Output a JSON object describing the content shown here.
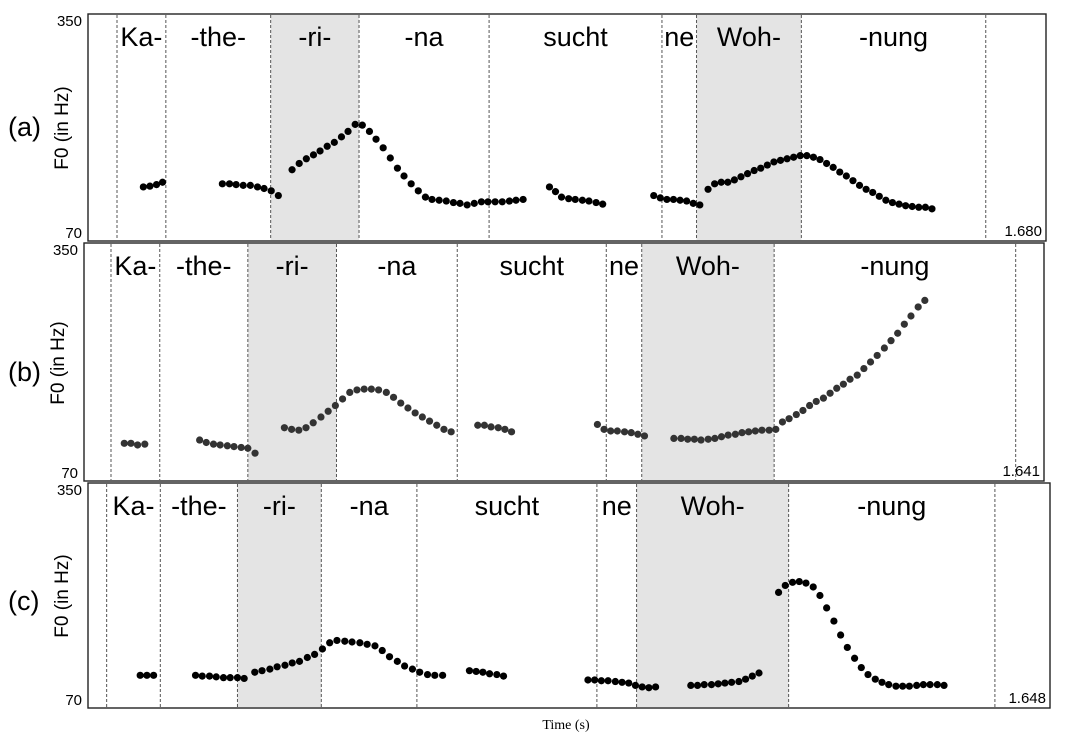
{
  "x_axis_label": "Time (s)",
  "y_axis_label": "F0 (in Hz)",
  "chart_data": [
    {
      "type": "scatter",
      "panel": "(a)",
      "ylim": [
        70,
        350
      ],
      "y_ticks": [
        "350",
        "70"
      ],
      "xlim": [
        0,
        1.68
      ],
      "duration_label": "1.680",
      "syllables": [
        "Ka-",
        "-the-",
        "-ri-",
        "-na",
        "sucht",
        "ne",
        "Woh-",
        "-nung"
      ],
      "highlighted_syllables": [
        "-ri-",
        "Woh-"
      ],
      "boundaries": [
        0.0,
        0.089,
        0.28,
        0.441,
        0.678,
        0.993,
        1.056,
        1.247
      ],
      "end_boundary": 1.583,
      "points": [
        [
          0.048,
          134
        ],
        [
          0.06,
          135
        ],
        [
          0.072,
          137
        ],
        [
          0.083,
          140
        ],
        [
          0.192,
          138
        ],
        [
          0.205,
          138
        ],
        [
          0.217,
          137
        ],
        [
          0.23,
          136
        ],
        [
          0.243,
          136
        ],
        [
          0.256,
          134
        ],
        [
          0.268,
          132
        ],
        [
          0.281,
          129
        ],
        [
          0.294,
          123
        ],
        [
          0.319,
          156
        ],
        [
          0.332,
          164
        ],
        [
          0.345,
          170
        ],
        [
          0.358,
          175
        ],
        [
          0.37,
          180
        ],
        [
          0.383,
          186
        ],
        [
          0.396,
          191
        ],
        [
          0.409,
          198
        ],
        [
          0.421,
          205
        ],
        [
          0.434,
          214
        ],
        [
          0.447,
          213
        ],
        [
          0.46,
          205
        ],
        [
          0.472,
          195
        ],
        [
          0.485,
          184
        ],
        [
          0.498,
          171
        ],
        [
          0.511,
          158
        ],
        [
          0.523,
          148
        ],
        [
          0.536,
          138
        ],
        [
          0.549,
          129
        ],
        [
          0.562,
          121
        ],
        [
          0.574,
          118
        ],
        [
          0.587,
          117
        ],
        [
          0.6,
          116
        ],
        [
          0.613,
          114
        ],
        [
          0.625,
          113
        ],
        [
          0.638,
          111
        ],
        [
          0.651,
          113
        ],
        [
          0.664,
          115
        ],
        [
          0.676,
          115
        ],
        [
          0.689,
          115
        ],
        [
          0.702,
          115
        ],
        [
          0.715,
          116
        ],
        [
          0.727,
          117
        ],
        [
          0.74,
          118
        ],
        [
          0.788,
          134
        ],
        [
          0.799,
          128
        ],
        [
          0.81,
          121
        ],
        [
          0.823,
          119
        ],
        [
          0.835,
          118
        ],
        [
          0.848,
          117
        ],
        [
          0.86,
          116
        ],
        [
          0.873,
          114
        ],
        [
          0.885,
          112
        ],
        [
          0.978,
          123
        ],
        [
          0.99,
          120
        ],
        [
          1.002,
          118
        ],
        [
          1.014,
          118
        ],
        [
          1.026,
          117
        ],
        [
          1.038,
          116
        ],
        [
          1.05,
          113
        ],
        [
          1.062,
          111
        ],
        [
          1.077,
          131
        ],
        [
          1.089,
          138
        ],
        [
          1.101,
          140
        ],
        [
          1.113,
          140
        ],
        [
          1.125,
          143
        ],
        [
          1.137,
          147
        ],
        [
          1.149,
          151
        ],
        [
          1.161,
          155
        ],
        [
          1.173,
          158
        ],
        [
          1.185,
          162
        ],
        [
          1.197,
          166
        ],
        [
          1.209,
          168
        ],
        [
          1.221,
          170
        ],
        [
          1.233,
          172
        ],
        [
          1.245,
          174
        ],
        [
          1.257,
          174
        ],
        [
          1.269,
          172
        ],
        [
          1.281,
          169
        ],
        [
          1.293,
          164
        ],
        [
          1.305,
          159
        ],
        [
          1.317,
          153
        ],
        [
          1.329,
          148
        ],
        [
          1.341,
          142
        ],
        [
          1.353,
          136
        ],
        [
          1.365,
          131
        ],
        [
          1.377,
          127
        ],
        [
          1.389,
          122
        ],
        [
          1.401,
          117
        ],
        [
          1.413,
          114
        ],
        [
          1.425,
          112
        ],
        [
          1.437,
          110
        ],
        [
          1.449,
          109
        ],
        [
          1.461,
          108
        ],
        [
          1.473,
          108
        ],
        [
          1.485,
          106
        ]
      ]
    },
    {
      "type": "scatter",
      "panel": "(b)",
      "ylim": [
        70,
        350
      ],
      "y_ticks": [
        "350",
        "70"
      ],
      "xlim": [
        0,
        1.641
      ],
      "duration_label": "1.641",
      "syllables": [
        "Ka-",
        "-the-",
        "-ri-",
        "-na",
        "sucht",
        "ne",
        "Woh-",
        "-nung"
      ],
      "highlighted_syllables": [
        "-ri-",
        "Woh-"
      ],
      "boundaries": [
        0.0,
        0.088,
        0.247,
        0.407,
        0.625,
        0.894,
        0.958,
        1.197
      ],
      "end_boundary": 1.633,
      "points": [
        [
          0.024,
          111
        ],
        [
          0.036,
          111
        ],
        [
          0.048,
          109
        ],
        [
          0.061,
          110
        ],
        [
          0.16,
          115
        ],
        [
          0.172,
          112
        ],
        [
          0.185,
          110
        ],
        [
          0.197,
          109
        ],
        [
          0.21,
          108
        ],
        [
          0.222,
          107
        ],
        [
          0.235,
          106
        ],
        [
          0.247,
          105
        ],
        [
          0.26,
          99
        ],
        [
          0.313,
          130
        ],
        [
          0.326,
          128
        ],
        [
          0.339,
          127
        ],
        [
          0.352,
          130
        ],
        [
          0.365,
          136
        ],
        [
          0.379,
          143
        ],
        [
          0.392,
          150
        ],
        [
          0.405,
          157
        ],
        [
          0.418,
          165
        ],
        [
          0.431,
          173
        ],
        [
          0.444,
          176
        ],
        [
          0.457,
          177
        ],
        [
          0.47,
          177
        ],
        [
          0.483,
          176
        ],
        [
          0.497,
          173
        ],
        [
          0.51,
          167
        ],
        [
          0.523,
          160
        ],
        [
          0.536,
          154
        ],
        [
          0.549,
          148
        ],
        [
          0.562,
          143
        ],
        [
          0.575,
          138
        ],
        [
          0.588,
          133
        ],
        [
          0.601,
          128
        ],
        [
          0.614,
          125
        ],
        [
          0.662,
          133
        ],
        [
          0.674,
          133
        ],
        [
          0.686,
          131
        ],
        [
          0.699,
          130
        ],
        [
          0.711,
          128
        ],
        [
          0.723,
          125
        ],
        [
          0.878,
          134
        ],
        [
          0.89,
          128
        ],
        [
          0.902,
          126
        ],
        [
          0.914,
          126
        ],
        [
          0.927,
          125
        ],
        [
          0.939,
          124
        ],
        [
          0.951,
          122
        ],
        [
          0.963,
          120
        ],
        [
          1.016,
          117
        ],
        [
          1.029,
          117
        ],
        [
          1.041,
          116
        ],
        [
          1.053,
          116
        ],
        [
          1.065,
          115
        ],
        [
          1.078,
          116
        ],
        [
          1.09,
          117
        ],
        [
          1.102,
          119
        ],
        [
          1.114,
          121
        ],
        [
          1.127,
          122
        ],
        [
          1.139,
          124
        ],
        [
          1.151,
          125
        ],
        [
          1.163,
          126
        ],
        [
          1.175,
          127
        ],
        [
          1.188,
          127
        ],
        [
          1.2,
          128
        ],
        [
          1.212,
          137
        ],
        [
          1.224,
          141
        ],
        [
          1.237,
          146
        ],
        [
          1.249,
          151
        ],
        [
          1.261,
          157
        ],
        [
          1.273,
          162
        ],
        [
          1.286,
          166
        ],
        [
          1.298,
          172
        ],
        [
          1.31,
          178
        ],
        [
          1.322,
          183
        ],
        [
          1.334,
          189
        ],
        [
          1.347,
          194
        ],
        [
          1.359,
          202
        ],
        [
          1.371,
          210
        ],
        [
          1.383,
          218
        ],
        [
          1.396,
          227
        ],
        [
          1.408,
          236
        ],
        [
          1.42,
          245
        ],
        [
          1.432,
          256
        ],
        [
          1.444,
          266
        ],
        [
          1.457,
          277
        ],
        [
          1.469,
          285
        ]
      ]
    },
    {
      "type": "scatter",
      "panel": "(c)",
      "ylim": [
        70,
        350
      ],
      "y_ticks": [
        "350",
        "70"
      ],
      "xlim": [
        0,
        1.648
      ],
      "duration_label": "1.648",
      "syllables": [
        "Ka-",
        "-the-",
        "-ri-",
        "-na",
        "sucht",
        "ne",
        "Woh-",
        "-nung"
      ],
      "highlighted_syllables": [
        "-ri-",
        "Woh-"
      ],
      "boundaries": [
        0.028,
        0.124,
        0.262,
        0.412,
        0.583,
        0.905,
        0.976,
        1.248
      ],
      "end_boundary": 1.617,
      "points": [
        [
          0.088,
          107
        ],
        [
          0.1,
          107
        ],
        [
          0.112,
          107
        ],
        [
          0.187,
          107
        ],
        [
          0.199,
          106
        ],
        [
          0.212,
          106
        ],
        [
          0.224,
          105
        ],
        [
          0.237,
          104
        ],
        [
          0.249,
          104
        ],
        [
          0.262,
          104
        ],
        [
          0.274,
          103
        ],
        [
          0.293,
          111
        ],
        [
          0.306,
          113
        ],
        [
          0.32,
          115
        ],
        [
          0.333,
          118
        ],
        [
          0.347,
          120
        ],
        [
          0.36,
          123
        ],
        [
          0.373,
          125
        ],
        [
          0.387,
          130
        ],
        [
          0.4,
          134
        ],
        [
          0.414,
          141
        ],
        [
          0.427,
          149
        ],
        [
          0.44,
          152
        ],
        [
          0.454,
          151
        ],
        [
          0.467,
          150
        ],
        [
          0.481,
          149
        ],
        [
          0.494,
          147
        ],
        [
          0.508,
          145
        ],
        [
          0.521,
          139
        ],
        [
          0.534,
          131
        ],
        [
          0.548,
          125
        ],
        [
          0.561,
          119
        ],
        [
          0.575,
          115
        ],
        [
          0.588,
          111
        ],
        [
          0.602,
          108
        ],
        [
          0.615,
          107
        ],
        [
          0.629,
          107
        ],
        [
          0.677,
          113
        ],
        [
          0.689,
          112
        ],
        [
          0.701,
          111
        ],
        [
          0.713,
          109
        ],
        [
          0.726,
          108
        ],
        [
          0.738,
          106
        ],
        [
          0.889,
          101
        ],
        [
          0.901,
          101
        ],
        [
          0.913,
          100
        ],
        [
          0.925,
          100
        ],
        [
          0.938,
          99
        ],
        [
          0.95,
          98
        ],
        [
          0.962,
          97
        ],
        [
          0.974,
          94
        ],
        [
          0.986,
          92
        ],
        [
          0.998,
          91
        ],
        [
          1.01,
          92
        ],
        [
          1.073,
          94
        ],
        [
          1.085,
          94
        ],
        [
          1.097,
          95
        ],
        [
          1.11,
          95
        ],
        [
          1.122,
          96
        ],
        [
          1.134,
          97
        ],
        [
          1.146,
          98
        ],
        [
          1.159,
          99
        ],
        [
          1.171,
          102
        ],
        [
          1.183,
          106
        ],
        [
          1.195,
          110
        ],
        [
          1.23,
          214
        ],
        [
          1.242,
          223
        ],
        [
          1.255,
          227
        ],
        [
          1.267,
          228
        ],
        [
          1.279,
          226
        ],
        [
          1.292,
          221
        ],
        [
          1.304,
          210
        ],
        [
          1.316,
          194
        ],
        [
          1.329,
          177
        ],
        [
          1.341,
          159
        ],
        [
          1.353,
          143
        ],
        [
          1.366,
          129
        ],
        [
          1.378,
          117
        ],
        [
          1.39,
          108
        ],
        [
          1.403,
          102
        ],
        [
          1.415,
          98
        ],
        [
          1.427,
          95
        ],
        [
          1.44,
          93
        ],
        [
          1.452,
          93
        ],
        [
          1.464,
          93
        ],
        [
          1.477,
          94
        ],
        [
          1.489,
          95
        ],
        [
          1.501,
          95
        ],
        [
          1.514,
          95
        ],
        [
          1.526,
          94
        ]
      ]
    }
  ]
}
